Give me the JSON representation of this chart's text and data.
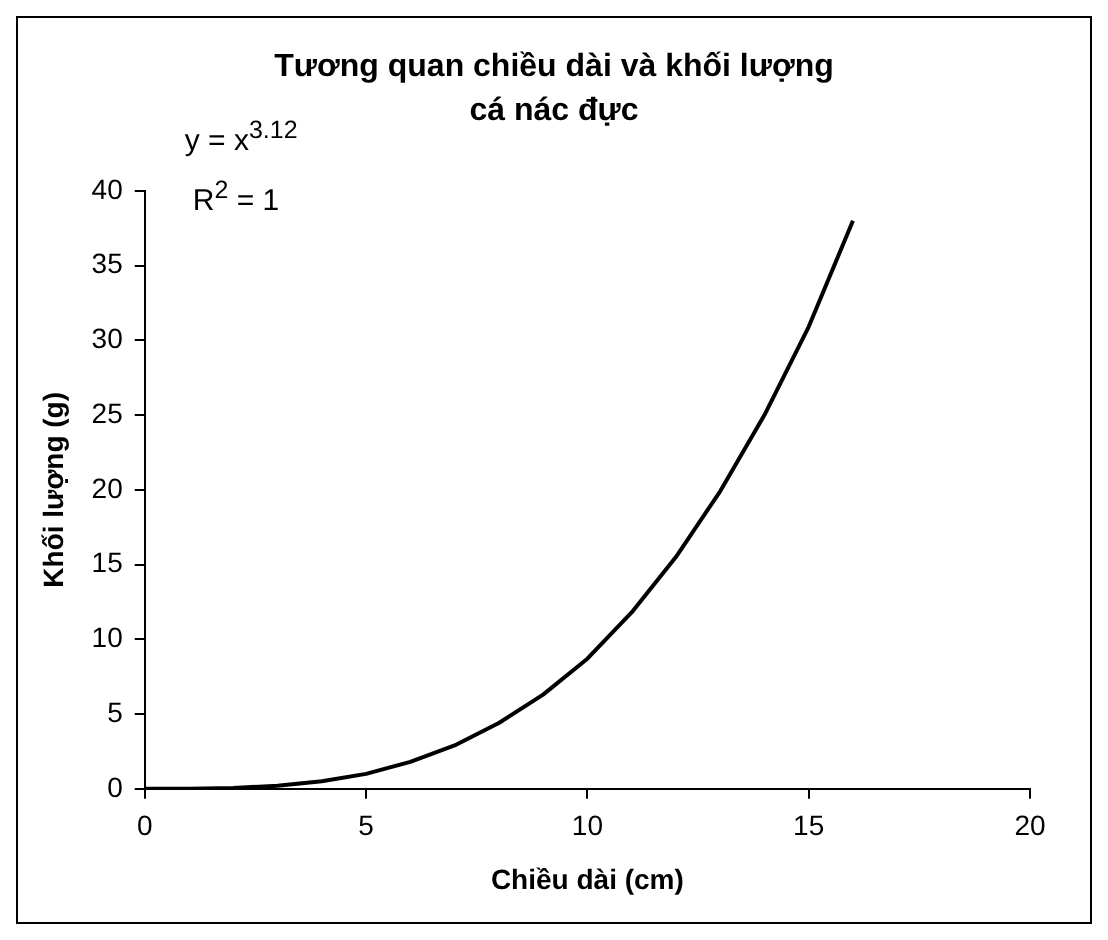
{
  "chart_data": {
    "type": "line",
    "title": "Tương quan chiều dài và khối lượng cá nác đực",
    "xlabel": "Chiều dài (cm)",
    "ylabel": "Khối lượng (g)",
    "x": [
      0,
      1,
      2,
      3,
      4,
      5,
      6,
      7,
      8,
      9,
      10,
      11,
      12,
      13,
      14,
      15,
      16
    ],
    "series": [
      {
        "color": "#000000",
        "values": [
          0,
          0.01,
          0.06,
          0.2,
          0.5,
          1,
          1.8,
          2.9,
          4.4,
          6.3,
          8.7,
          11.8,
          15.5,
          19.9,
          25,
          30.9,
          38
        ]
      }
    ],
    "xlim": [
      0,
      20
    ],
    "xticks": [
      0,
      5,
      10,
      15,
      20
    ],
    "ylim": [
      0,
      40
    ],
    "yticks": [
      0,
      5,
      10,
      15,
      20,
      25,
      30,
      35,
      40
    ],
    "annotations": [
      "y = x$^{3.12}$",
      "R$^{2}$ = 1"
    ],
    "grid": false,
    "legend": false,
    "marker": "none",
    "line_style": "solid"
  }
}
